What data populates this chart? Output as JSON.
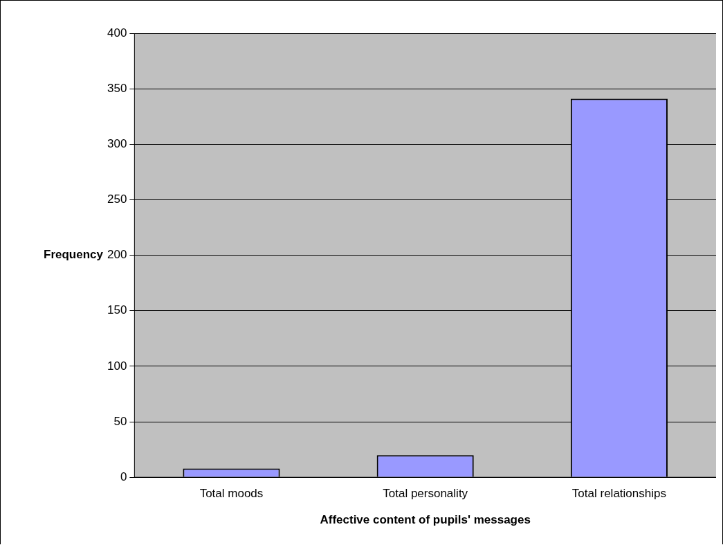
{
  "chart_data": {
    "type": "bar",
    "xlabel": "Affective content of pupils' messages",
    "ylabel": "Frequency",
    "categories": [
      "Total moods",
      "Total personality",
      "Total relationships"
    ],
    "values": [
      8,
      20,
      341
    ],
    "color": "#9999ff",
    "ylim": [
      0,
      400
    ],
    "yticks": [
      0,
      50,
      100,
      150,
      200,
      250,
      300,
      350,
      400
    ],
    "grid": "y"
  }
}
